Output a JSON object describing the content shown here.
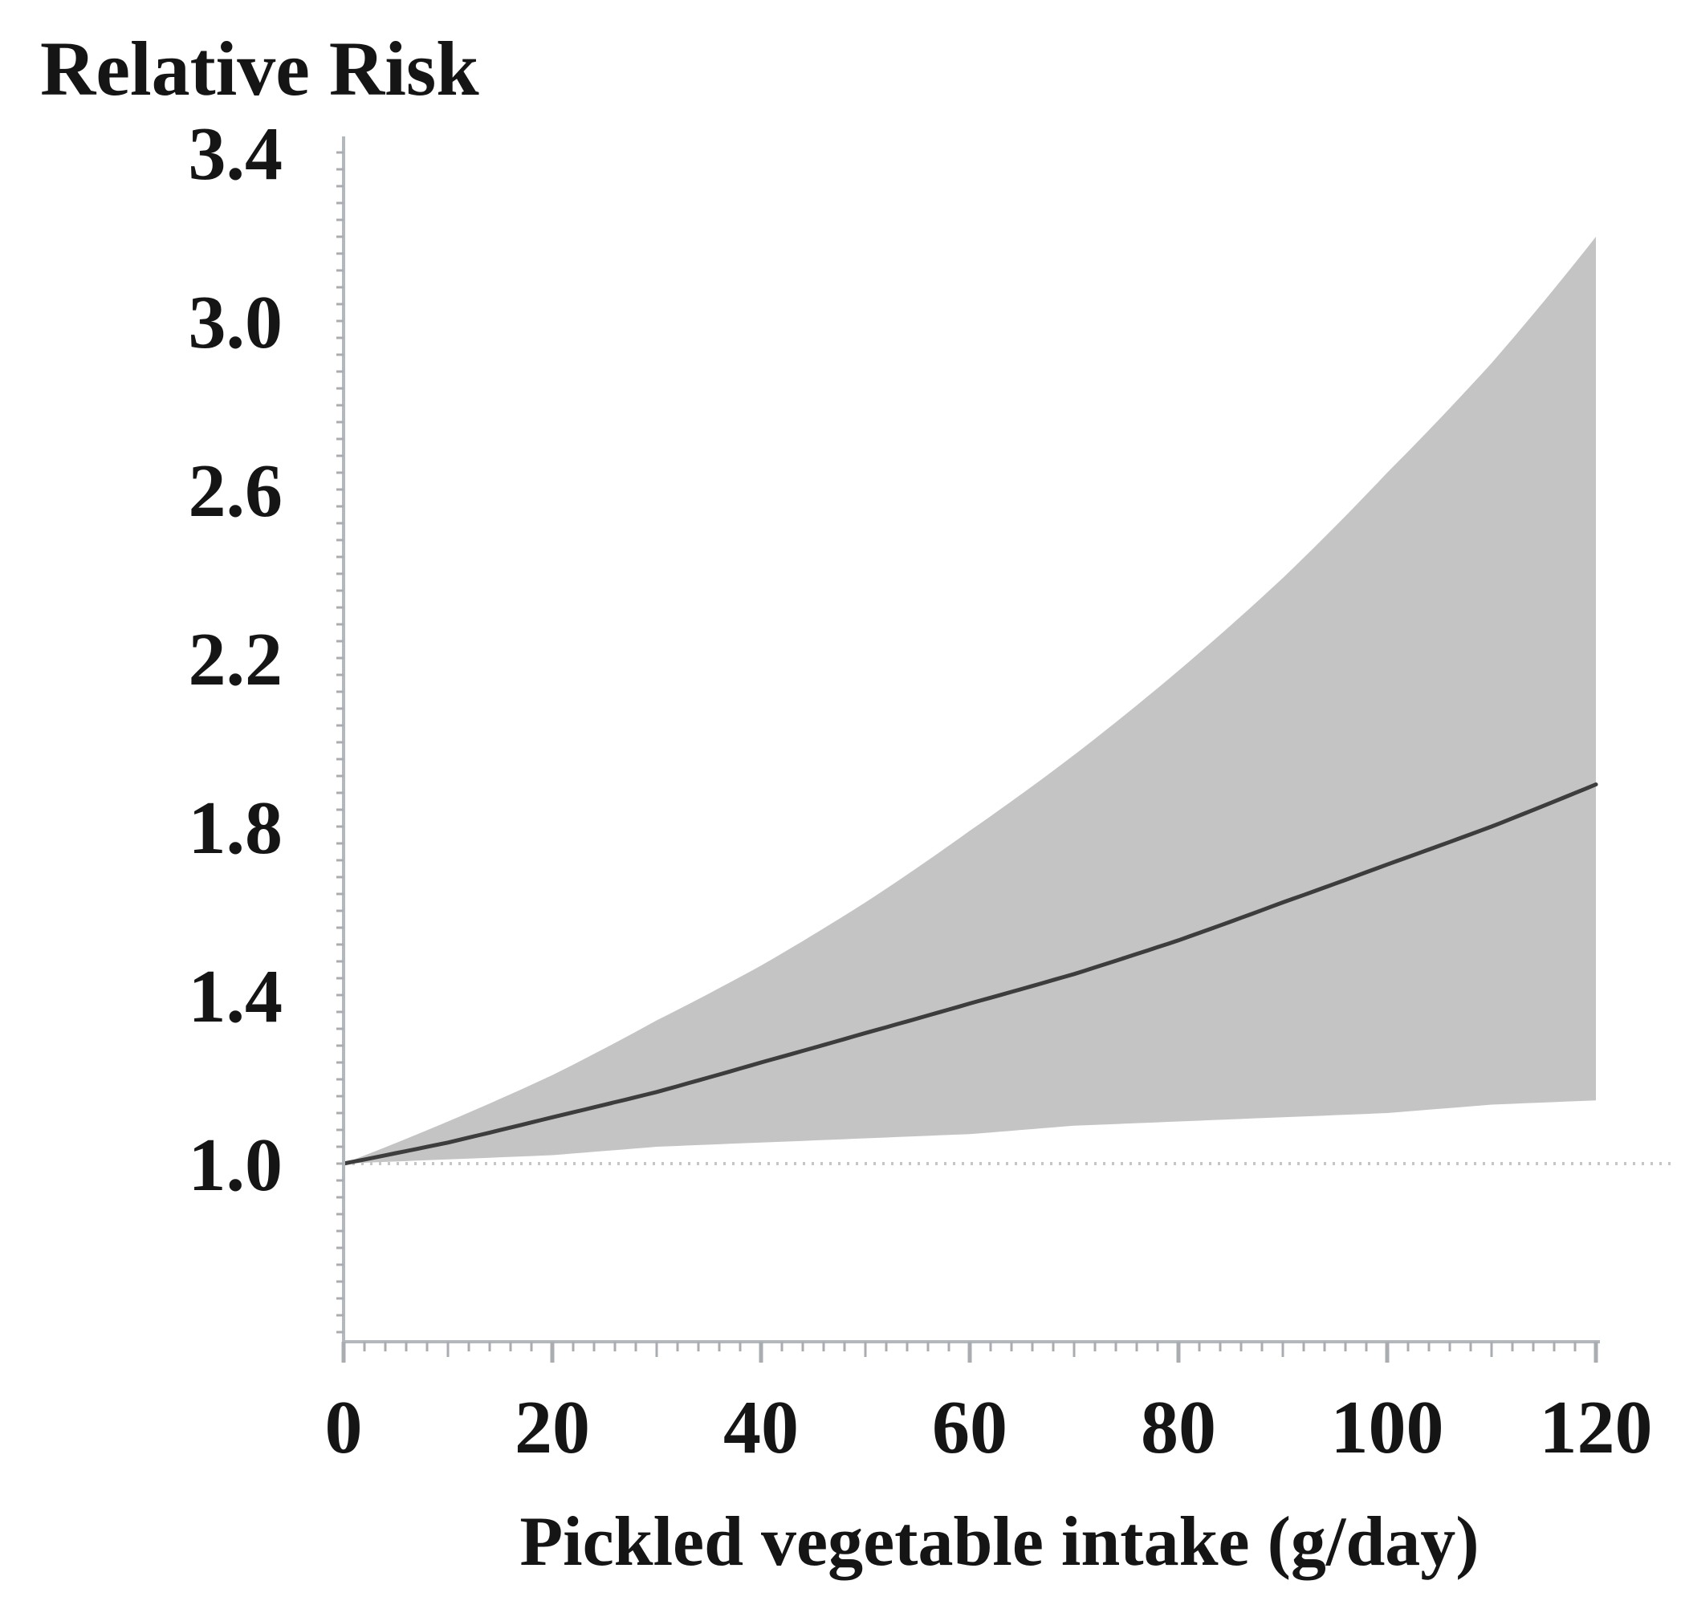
{
  "figure": {
    "y_axis_heading": "Relative Risk",
    "x_axis_title": "Pickled vegetable intake (g/day)"
  },
  "chart_data": {
    "type": "line",
    "title": "Relative Risk",
    "xlabel": "Pickled vegetable intake (g/day)",
    "ylabel": "Relative Risk",
    "x_range": [
      0,
      120
    ],
    "y_axis_visible_range": [
      0.57,
      3.43
    ],
    "x_ticks_labeled": [
      0,
      20,
      40,
      60,
      80,
      100,
      120
    ],
    "x_tick_minor_step": 2,
    "x_tick_medium_step": 10,
    "x_tick_major_step": 20,
    "y_ticks_labeled": [
      "3.4",
      "3.0",
      "2.6",
      "2.2",
      "1.8",
      "1.4",
      "1.0"
    ],
    "y_tick_minor_step": 0.04,
    "grid": false,
    "legend_position": "none",
    "reference_line_y": 1.0,
    "band_style": "shaded-confidence-interval",
    "x": [
      0,
      10,
      20,
      30,
      40,
      50,
      60,
      70,
      80,
      90,
      100,
      110,
      120
    ],
    "series": [
      {
        "name": "relative-risk-curve",
        "values": [
          1.0,
          1.05,
          1.11,
          1.17,
          1.24,
          1.31,
          1.38,
          1.45,
          1.53,
          1.62,
          1.71,
          1.8,
          1.9
        ]
      },
      {
        "name": "ci-95-upper",
        "values": [
          1.0,
          1.1,
          1.21,
          1.34,
          1.47,
          1.62,
          1.79,
          1.97,
          2.17,
          2.39,
          2.64,
          2.9,
          3.2
        ]
      },
      {
        "name": "ci-95-lower",
        "values": [
          1.0,
          1.01,
          1.02,
          1.04,
          1.05,
          1.06,
          1.07,
          1.09,
          1.1,
          1.11,
          1.12,
          1.14,
          1.15
        ]
      }
    ]
  },
  "colors": {
    "band": "#c4c4c4",
    "curve": "#3d3d3d",
    "reference_line": "#c6c6c6",
    "axis": "#b2b8be",
    "tick": "#a9adb2",
    "text": "#151515",
    "background": "#ffffff"
  }
}
